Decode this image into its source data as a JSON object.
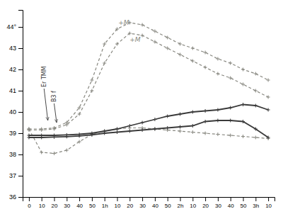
{
  "chart_data": {
    "type": "line",
    "categories": [
      "0",
      "10",
      "20",
      "30",
      "40",
      "50",
      "1h",
      "10",
      "20",
      "30",
      "40",
      "50",
      "2h",
      "10",
      "20",
      "30",
      "40",
      "50",
      "3h",
      "10"
    ],
    "series": [
      {
        "color": "#888880",
        "line_style": "dashed",
        "marker": "plus",
        "values": [
          39.2,
          39.2,
          39.25,
          39.5,
          40.2,
          41.5,
          43.2,
          43.9,
          44.2,
          44.1,
          43.8,
          43.5,
          43.2,
          43.0,
          42.8,
          42.5,
          42.3,
          42.0,
          41.8,
          41.5
        ]
      },
      {
        "color": "#888880",
        "line_style": "dashed",
        "marker": "plus",
        "values": [
          39.15,
          39.15,
          39.2,
          39.4,
          39.9,
          41.0,
          42.3,
          43.2,
          43.7,
          43.6,
          43.3,
          43.0,
          42.7,
          42.4,
          42.1,
          41.8,
          41.6,
          41.3,
          41.0,
          40.7
        ]
      },
      {
        "color": "#888880",
        "line_style": "dashed",
        "marker": "plus",
        "values": [
          39.2,
          38.1,
          38.05,
          38.2,
          38.6,
          38.95,
          39.1,
          39.2,
          39.25,
          39.25,
          39.2,
          39.15,
          39.1,
          39.05,
          39.0,
          38.95,
          38.9,
          38.85,
          38.8,
          38.75
        ]
      },
      {
        "color": "#3a3a3a",
        "line_style": "solid",
        "marker": "plus",
        "values": [
          38.9,
          38.9,
          38.9,
          38.92,
          38.95,
          39.0,
          39.1,
          39.2,
          39.35,
          39.5,
          39.65,
          39.8,
          39.9,
          40.0,
          40.05,
          40.1,
          40.2,
          40.35,
          40.3,
          40.1
        ]
      },
      {
        "color": "#3a3a3a",
        "line_style": "solid",
        "marker": "plus",
        "values": [
          38.8,
          38.8,
          38.82,
          38.84,
          38.87,
          38.92,
          39.0,
          39.05,
          39.1,
          39.15,
          39.2,
          39.25,
          39.3,
          39.35,
          39.55,
          39.6,
          39.6,
          39.55,
          39.2,
          38.8
        ]
      }
    ],
    "ylim": [
      36,
      44.8
    ],
    "yticks": [
      36,
      37,
      38,
      39,
      40,
      41,
      42,
      43,
      {
        "value": 44,
        "label": "44°"
      }
    ],
    "grid": false,
    "annotations": [
      {
        "text": "Er TMM",
        "x": 1.2,
        "y": 41.1,
        "arrow_x": 1.5,
        "arrow_y": 39.6
      },
      {
        "text": "B3 f",
        "x": 2.0,
        "y": 40.4,
        "arrow_x": 2.2,
        "arrow_y": 39.5
      },
      {
        "text": "+M",
        "x": 7.1,
        "y": 44.1
      },
      {
        "text": "+M",
        "x": 8.0,
        "y": 43.3
      }
    ]
  }
}
